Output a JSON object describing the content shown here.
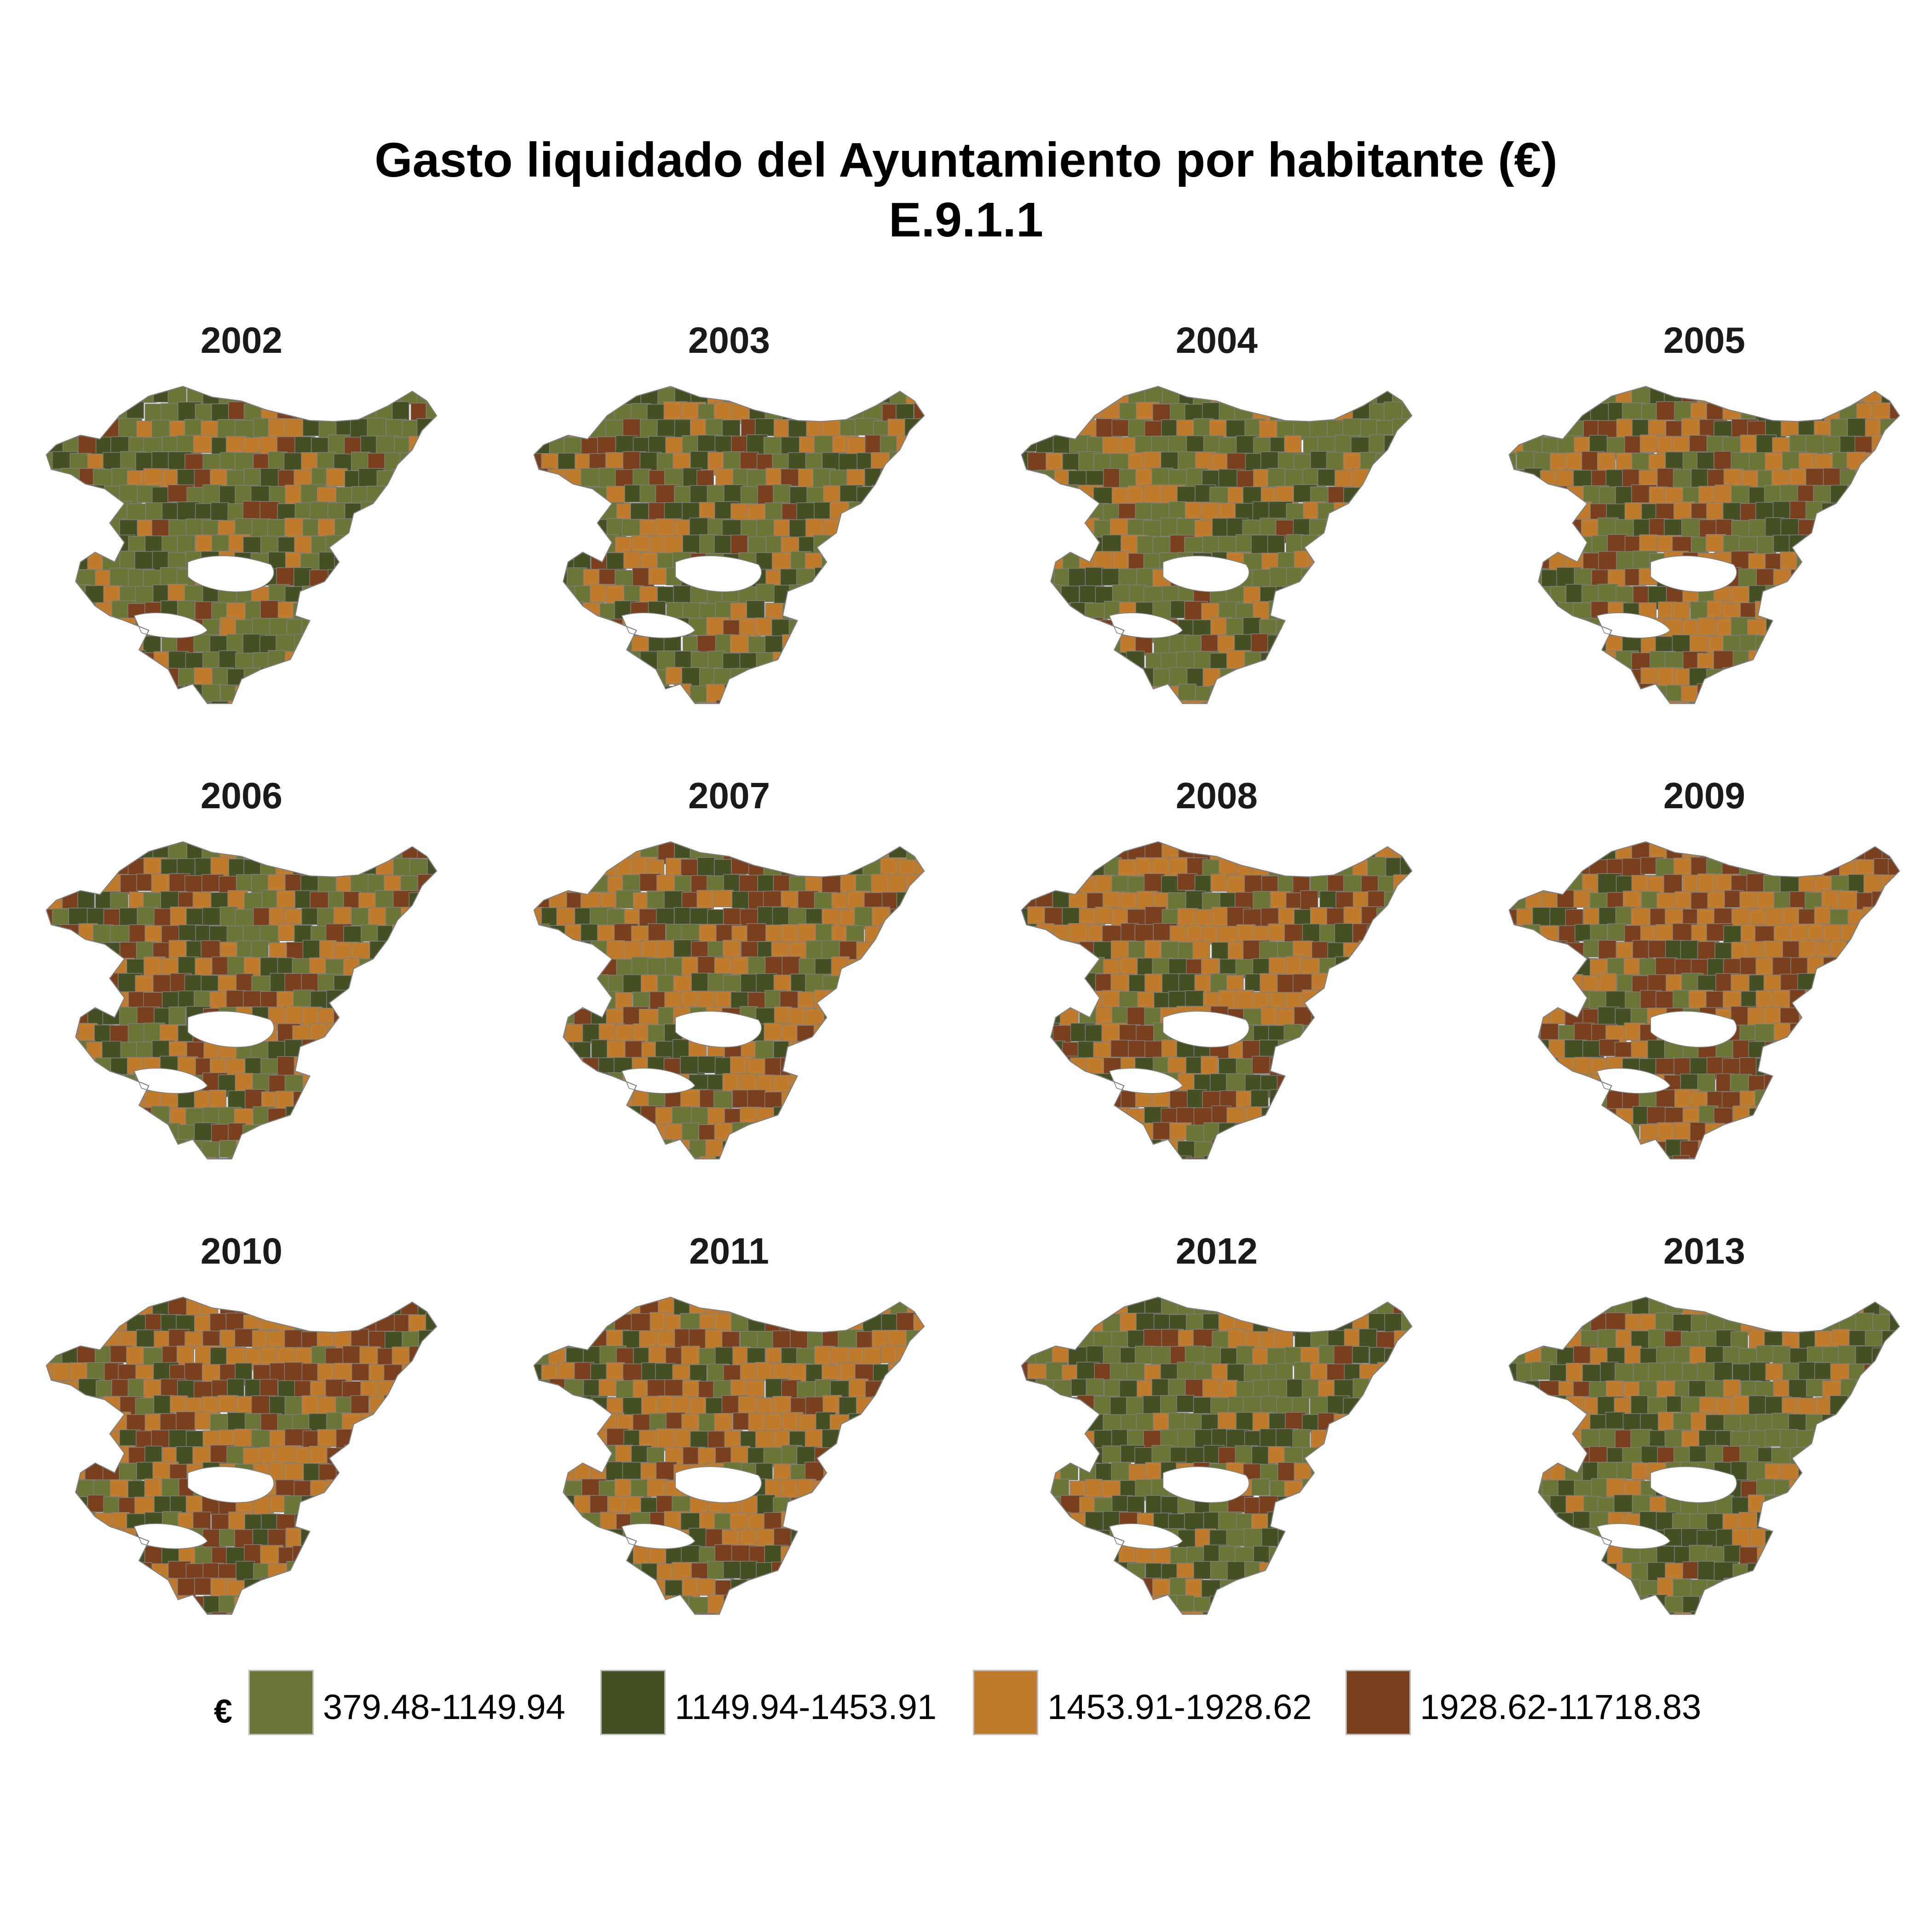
{
  "title_line1": "Gasto liquidado del Ayuntamiento por habitante (€)",
  "title_line2": "E.9.1.1",
  "legend": {
    "title": "€",
    "items": [
      {
        "label": "379.48-1149.94",
        "color": "#6b7536"
      },
      {
        "label": "1149.94-1453.91",
        "color": "#454f24"
      },
      {
        "label": "1453.91-1928.62",
        "color": "#c07c2c"
      },
      {
        "label": "1928.62-11718.83",
        "color": "#7a3f1c"
      }
    ]
  },
  "border_color": "#7f7f7f",
  "panels": [
    {
      "year": "2002",
      "weights": [
        0.5,
        0.27,
        0.15,
        0.08
      ]
    },
    {
      "year": "2003",
      "weights": [
        0.4,
        0.25,
        0.22,
        0.13
      ]
    },
    {
      "year": "2004",
      "weights": [
        0.46,
        0.24,
        0.2,
        0.1
      ]
    },
    {
      "year": "2005",
      "weights": [
        0.32,
        0.18,
        0.3,
        0.2
      ]
    },
    {
      "year": "2006",
      "weights": [
        0.25,
        0.25,
        0.3,
        0.2
      ]
    },
    {
      "year": "2007",
      "weights": [
        0.2,
        0.18,
        0.42,
        0.2
      ]
    },
    {
      "year": "2008",
      "weights": [
        0.18,
        0.17,
        0.42,
        0.23
      ]
    },
    {
      "year": "2009",
      "weights": [
        0.1,
        0.12,
        0.4,
        0.38
      ]
    },
    {
      "year": "2010",
      "weights": [
        0.12,
        0.15,
        0.43,
        0.3
      ]
    },
    {
      "year": "2011",
      "weights": [
        0.18,
        0.18,
        0.44,
        0.2
      ]
    },
    {
      "year": "2012",
      "weights": [
        0.38,
        0.32,
        0.22,
        0.08
      ]
    },
    {
      "year": "2013",
      "weights": [
        0.45,
        0.3,
        0.17,
        0.08
      ]
    }
  ]
}
